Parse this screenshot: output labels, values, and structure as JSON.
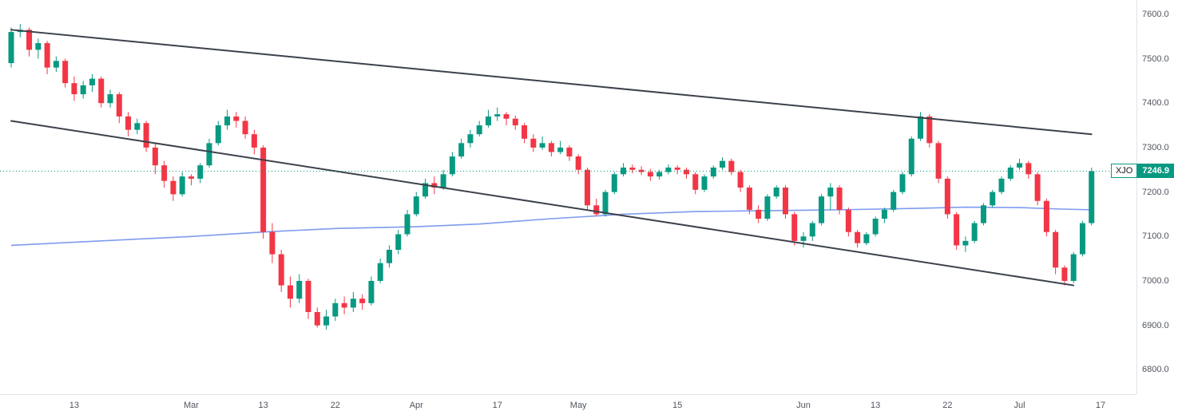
{
  "price_label": {
    "symbol": "XJO",
    "value": "7246.9"
  },
  "colors": {
    "up": "#089981",
    "down": "#f23645",
    "ma": "#7e9bef",
    "trendline": "#3c414c",
    "axis_text": "#50555e",
    "price_line": "#089981"
  },
  "chart_data": {
    "type": "candlestick",
    "symbol": "XJO",
    "title": "XJO daily candlestick chart with descending channel trendlines and moving average",
    "last_price": 7246.9,
    "legend_position": "none",
    "grid": false,
    "y_axis": {
      "min": 6745,
      "max": 7632,
      "ticks": [
        {
          "v": 7600,
          "label": "7600.0"
        },
        {
          "v": 7500,
          "label": "7500.0"
        },
        {
          "v": 7400,
          "label": "7400.0"
        },
        {
          "v": 7300,
          "label": "7300.0"
        },
        {
          "v": 7200,
          "label": "7200.0"
        },
        {
          "v": 7100,
          "label": "7100.0"
        },
        {
          "v": 7000,
          "label": "7000.0"
        },
        {
          "v": 6900,
          "label": "6900.0"
        },
        {
          "v": 6800,
          "label": "6800.0"
        }
      ]
    },
    "x_axis": {
      "ticks": [
        {
          "i": 7,
          "label": "13"
        },
        {
          "i": 20,
          "label": "Mar"
        },
        {
          "i": 28,
          "label": "13"
        },
        {
          "i": 36,
          "label": "22"
        },
        {
          "i": 45,
          "label": "Apr"
        },
        {
          "i": 54,
          "label": "17"
        },
        {
          "i": 63,
          "label": "May"
        },
        {
          "i": 74,
          "label": "15"
        },
        {
          "i": 88,
          "label": "Jun"
        },
        {
          "i": 96,
          "label": "13"
        },
        {
          "i": 104,
          "label": "22"
        },
        {
          "i": 112,
          "label": "Jul"
        },
        {
          "i": 121,
          "label": "17"
        }
      ]
    },
    "candles": [
      [
        7490,
        7570,
        7480,
        7560
      ],
      [
        7560,
        7578,
        7548,
        7565
      ],
      [
        7565,
        7570,
        7505,
        7520
      ],
      [
        7520,
        7545,
        7500,
        7535
      ],
      [
        7535,
        7540,
        7465,
        7480
      ],
      [
        7480,
        7505,
        7470,
        7495
      ],
      [
        7495,
        7500,
        7435,
        7445
      ],
      [
        7445,
        7460,
        7405,
        7420
      ],
      [
        7420,
        7450,
        7410,
        7440
      ],
      [
        7440,
        7465,
        7425,
        7455
      ],
      [
        7455,
        7460,
        7390,
        7400
      ],
      [
        7400,
        7430,
        7390,
        7420
      ],
      [
        7420,
        7425,
        7355,
        7370
      ],
      [
        7370,
        7380,
        7325,
        7340
      ],
      [
        7340,
        7365,
        7330,
        7355
      ],
      [
        7355,
        7360,
        7290,
        7300
      ],
      [
        7300,
        7310,
        7240,
        7260
      ],
      [
        7260,
        7270,
        7210,
        7225
      ],
      [
        7225,
        7235,
        7180,
        7195
      ],
      [
        7195,
        7245,
        7190,
        7235
      ],
      [
        7235,
        7240,
        7215,
        7230
      ],
      [
        7230,
        7265,
        7220,
        7260
      ],
      [
        7260,
        7320,
        7255,
        7310
      ],
      [
        7310,
        7360,
        7305,
        7350
      ],
      [
        7350,
        7385,
        7340,
        7370
      ],
      [
        7370,
        7380,
        7345,
        7360
      ],
      [
        7360,
        7370,
        7320,
        7330
      ],
      [
        7330,
        7340,
        7285,
        7300
      ],
      [
        7300,
        7305,
        7095,
        7110
      ],
      [
        7110,
        7130,
        7040,
        7060
      ],
      [
        7060,
        7070,
        6975,
        6990
      ],
      [
        6990,
        7010,
        6940,
        6960
      ],
      [
        6960,
        7015,
        6950,
        7000
      ],
      [
        7000,
        7005,
        6915,
        6930
      ],
      [
        6930,
        6940,
        6895,
        6900
      ],
      [
        6900,
        6935,
        6890,
        6920
      ],
      [
        6920,
        6960,
        6910,
        6950
      ],
      [
        6950,
        6965,
        6925,
        6940
      ],
      [
        6940,
        6975,
        6930,
        6960
      ],
      [
        6960,
        6970,
        6935,
        6950
      ],
      [
        6950,
        7010,
        6945,
        7000
      ],
      [
        7000,
        7050,
        6995,
        7040
      ],
      [
        7040,
        7080,
        7030,
        7070
      ],
      [
        7070,
        7115,
        7060,
        7105
      ],
      [
        7105,
        7160,
        7100,
        7150
      ],
      [
        7150,
        7200,
        7145,
        7190
      ],
      [
        7190,
        7230,
        7185,
        7220
      ],
      [
        7220,
        7235,
        7195,
        7210
      ],
      [
        7210,
        7250,
        7205,
        7240
      ],
      [
        7240,
        7290,
        7235,
        7280
      ],
      [
        7280,
        7320,
        7275,
        7310
      ],
      [
        7310,
        7340,
        7300,
        7330
      ],
      [
        7330,
        7360,
        7325,
        7350
      ],
      [
        7350,
        7385,
        7345,
        7370
      ],
      [
        7370,
        7390,
        7360,
        7375
      ],
      [
        7375,
        7380,
        7350,
        7365
      ],
      [
        7365,
        7372,
        7340,
        7350
      ],
      [
        7350,
        7355,
        7310,
        7320
      ],
      [
        7320,
        7330,
        7290,
        7300
      ],
      [
        7300,
        7325,
        7295,
        7310
      ],
      [
        7310,
        7315,
        7280,
        7290
      ],
      [
        7290,
        7315,
        7285,
        7300
      ],
      [
        7300,
        7305,
        7270,
        7280
      ],
      [
        7280,
        7285,
        7240,
        7250
      ],
      [
        7250,
        7255,
        7160,
        7170
      ],
      [
        7170,
        7185,
        7145,
        7150
      ],
      [
        7150,
        7205,
        7145,
        7200
      ],
      [
        7200,
        7245,
        7195,
        7240
      ],
      [
        7240,
        7265,
        7235,
        7255
      ],
      [
        7255,
        7262,
        7242,
        7250
      ],
      [
        7250,
        7258,
        7238,
        7245
      ],
      [
        7245,
        7252,
        7225,
        7235
      ],
      [
        7235,
        7250,
        7228,
        7245
      ],
      [
        7245,
        7262,
        7240,
        7255
      ],
      [
        7255,
        7260,
        7240,
        7250
      ],
      [
        7250,
        7255,
        7230,
        7240
      ],
      [
        7240,
        7245,
        7195,
        7205
      ],
      [
        7205,
        7240,
        7200,
        7235
      ],
      [
        7235,
        7260,
        7230,
        7255
      ],
      [
        7255,
        7278,
        7250,
        7270
      ],
      [
        7270,
        7275,
        7238,
        7245
      ],
      [
        7245,
        7250,
        7200,
        7210
      ],
      [
        7210,
        7215,
        7150,
        7160
      ],
      [
        7160,
        7170,
        7130,
        7140
      ],
      [
        7140,
        7195,
        7135,
        7190
      ],
      [
        7190,
        7215,
        7185,
        7210
      ],
      [
        7210,
        7215,
        7140,
        7150
      ],
      [
        7150,
        7155,
        7080,
        7090
      ],
      [
        7090,
        7110,
        7075,
        7100
      ],
      [
        7100,
        7135,
        7090,
        7130
      ],
      [
        7130,
        7195,
        7125,
        7190
      ],
      [
        7190,
        7220,
        7160,
        7210
      ],
      [
        7210,
        7215,
        7150,
        7160
      ],
      [
        7160,
        7165,
        7100,
        7110
      ],
      [
        7110,
        7115,
        7075,
        7085
      ],
      [
        7085,
        7110,
        7080,
        7105
      ],
      [
        7105,
        7145,
        7100,
        7140
      ],
      [
        7140,
        7165,
        7130,
        7160
      ],
      [
        7160,
        7205,
        7155,
        7200
      ],
      [
        7200,
        7245,
        7195,
        7240
      ],
      [
        7240,
        7325,
        7235,
        7320
      ],
      [
        7320,
        7380,
        7315,
        7370
      ],
      [
        7370,
        7375,
        7300,
        7310
      ],
      [
        7310,
        7315,
        7220,
        7230
      ],
      [
        7230,
        7235,
        7140,
        7150
      ],
      [
        7150,
        7155,
        7070,
        7080
      ],
      [
        7080,
        7100,
        7065,
        7090
      ],
      [
        7090,
        7135,
        7085,
        7130
      ],
      [
        7130,
        7175,
        7125,
        7170
      ],
      [
        7170,
        7205,
        7165,
        7200
      ],
      [
        7200,
        7235,
        7195,
        7230
      ],
      [
        7230,
        7260,
        7225,
        7255
      ],
      [
        7255,
        7275,
        7250,
        7265
      ],
      [
        7265,
        7270,
        7230,
        7240
      ],
      [
        7240,
        7245,
        7170,
        7180
      ],
      [
        7180,
        7185,
        7100,
        7110
      ],
      [
        7110,
        7115,
        7015,
        7030
      ],
      [
        7030,
        7035,
        6990,
        7000
      ],
      [
        7000,
        7065,
        6995,
        7060
      ],
      [
        7060,
        7135,
        7055,
        7130
      ],
      [
        7130,
        7255,
        7125,
        7246.9
      ]
    ],
    "ma_line": {
      "name": "moving-average",
      "points": [
        [
          0,
          7080
        ],
        [
          10,
          7090
        ],
        [
          20,
          7100
        ],
        [
          28,
          7110
        ],
        [
          36,
          7118
        ],
        [
          45,
          7122
        ],
        [
          52,
          7128
        ],
        [
          60,
          7140
        ],
        [
          68,
          7150
        ],
        [
          76,
          7156
        ],
        [
          84,
          7158
        ],
        [
          92,
          7160
        ],
        [
          100,
          7163
        ],
        [
          106,
          7166
        ],
        [
          112,
          7165
        ],
        [
          116,
          7162
        ],
        [
          120,
          7160
        ]
      ]
    },
    "trendlines": [
      {
        "name": "upper",
        "i1": 0,
        "p1": 7565,
        "i2": 120,
        "p2": 7330
      },
      {
        "name": "lower",
        "i1": 0,
        "p1": 7360,
        "i2": 118,
        "p2": 6990
      }
    ],
    "price_line": {
      "value": 7246.9,
      "style": "dotted"
    }
  }
}
